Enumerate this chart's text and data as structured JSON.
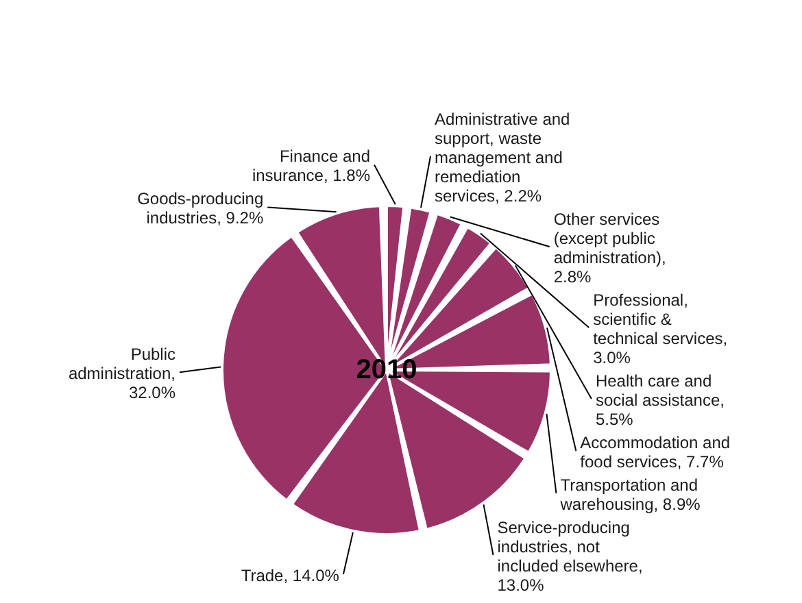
{
  "chart_data": {
    "type": "pie",
    "title": "2010",
    "categories": [
      "Finance and insurance",
      "Administrative and support, waste management and remediation services",
      "Other services (except public administration)",
      "Professional, scientific & technical services",
      "Health care and social assistance",
      "Accommodation and food services",
      "Transportation and warehousing",
      "Service-producing industries, not included elsewhere",
      "Trade",
      "Public administration",
      "Goods-producing industries"
    ],
    "values": [
      1.8,
      2.2,
      2.8,
      3.0,
      5.5,
      7.7,
      8.9,
      13.0,
      14.0,
      32.0,
      9.2
    ],
    "value_labels": [
      ", 1.8%",
      ", 2.2%",
      ", 2.8%",
      ", 3.0%",
      ", 5.5%",
      ", 7.7%",
      ", 8.9%",
      ", 13.0%",
      ", 14.0%",
      ", 32.0%",
      ", 9.2%"
    ],
    "colors": [
      "#993366",
      "#993366",
      "#993366",
      "#993366",
      "#993366",
      "#993366",
      "#993366",
      "#993366",
      "#993366",
      "#993366",
      "#993366"
    ],
    "legend": false
  }
}
